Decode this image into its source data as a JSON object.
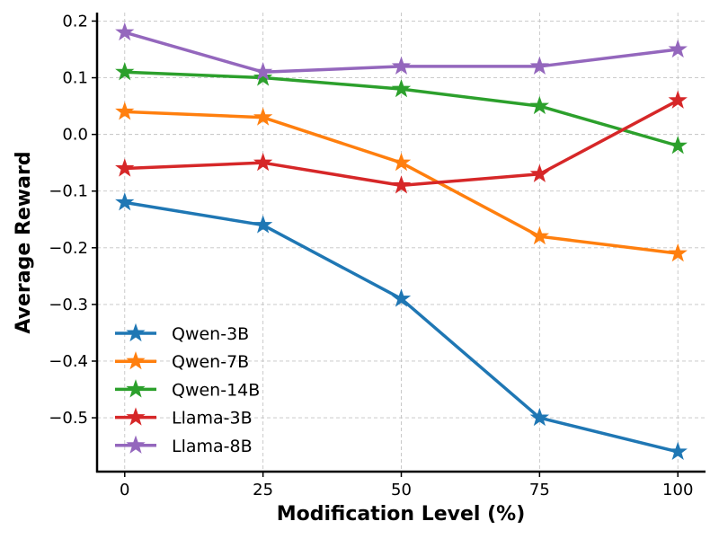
{
  "chart_data": {
    "type": "line",
    "title": "",
    "xlabel": "Modification Level (%)",
    "ylabel": "Average Reward",
    "x": [
      0,
      25,
      50,
      75,
      100
    ],
    "xticks": [
      "0",
      "25",
      "50",
      "75",
      "100"
    ],
    "yticks": [
      0.2,
      0.1,
      0.0,
      -0.1,
      -0.2,
      -0.3,
      -0.4,
      -0.5
    ],
    "ytick_labels": [
      "0.2",
      "0.1",
      "0.0",
      "−0.1",
      "−0.2",
      "−0.3",
      "−0.4",
      "−0.5"
    ],
    "xlim": [
      -5,
      105
    ],
    "ylim": [
      -0.595,
      0.215
    ],
    "grid": true,
    "legend_position": "lower-left",
    "marker": "star",
    "series": [
      {
        "name": "Qwen-3B",
        "color": "#1f77b4",
        "values": [
          -0.12,
          -0.16,
          -0.29,
          -0.5,
          -0.56
        ]
      },
      {
        "name": "Qwen-7B",
        "color": "#ff7f0e",
        "values": [
          0.04,
          0.03,
          -0.05,
          -0.18,
          -0.21
        ]
      },
      {
        "name": "Qwen-14B",
        "color": "#2ca02c",
        "values": [
          0.11,
          0.1,
          0.08,
          0.05,
          -0.02
        ]
      },
      {
        "name": "Llama-3B",
        "color": "#d62728",
        "values": [
          -0.06,
          -0.05,
          -0.09,
          -0.07,
          0.06
        ]
      },
      {
        "name": "Llama-8B",
        "color": "#9467bd",
        "values": [
          0.18,
          0.11,
          0.12,
          0.12,
          0.15
        ]
      }
    ]
  }
}
